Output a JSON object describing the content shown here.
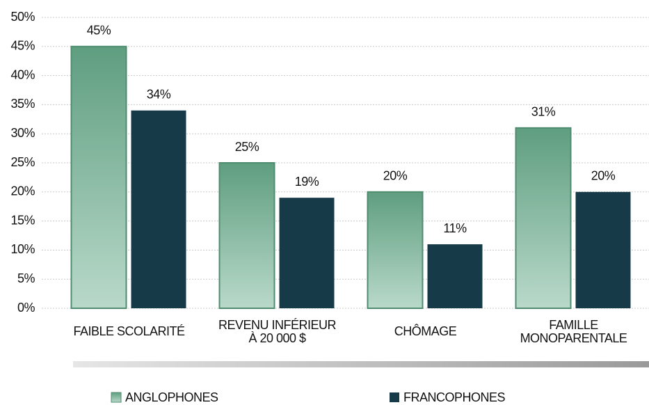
{
  "chart_data": {
    "type": "bar",
    "categories": [
      [
        "FAIBLE SCOLARITÉ"
      ],
      [
        "REVENU INFÉRIEUR",
        "À 20 000 $"
      ],
      [
        "CHÔMAGE"
      ],
      [
        "FAMILLE",
        "MONOPARENTALE"
      ]
    ],
    "series": [
      {
        "name": "ANGLOPHONES",
        "color": "#5f9e80",
        "values": [
          45,
          25,
          20,
          31
        ],
        "value_labels": [
          "45%",
          "25%",
          "20%",
          "31%"
        ]
      },
      {
        "name": "FRANCOPHONES",
        "color": "#173a48",
        "values": [
          34,
          19,
          11,
          20
        ],
        "value_labels": [
          "34%",
          "19%",
          "11%",
          "20%"
        ]
      }
    ],
    "ylim": [
      0,
      50
    ],
    "yticks": [
      {
        "value": 0,
        "label": "0%"
      },
      {
        "value": 5,
        "label": "5%"
      },
      {
        "value": 10,
        "label": "10%"
      },
      {
        "value": 15,
        "label": "15%"
      },
      {
        "value": 20,
        "label": "20%"
      },
      {
        "value": 25,
        "label": "25%"
      },
      {
        "value": 30,
        "label": "30%"
      },
      {
        "value": 35,
        "label": "35%"
      },
      {
        "value": 40,
        "label": "40%"
      },
      {
        "value": 45,
        "label": "45%"
      },
      {
        "value": 50,
        "label": "50%"
      }
    ],
    "grid": true
  }
}
